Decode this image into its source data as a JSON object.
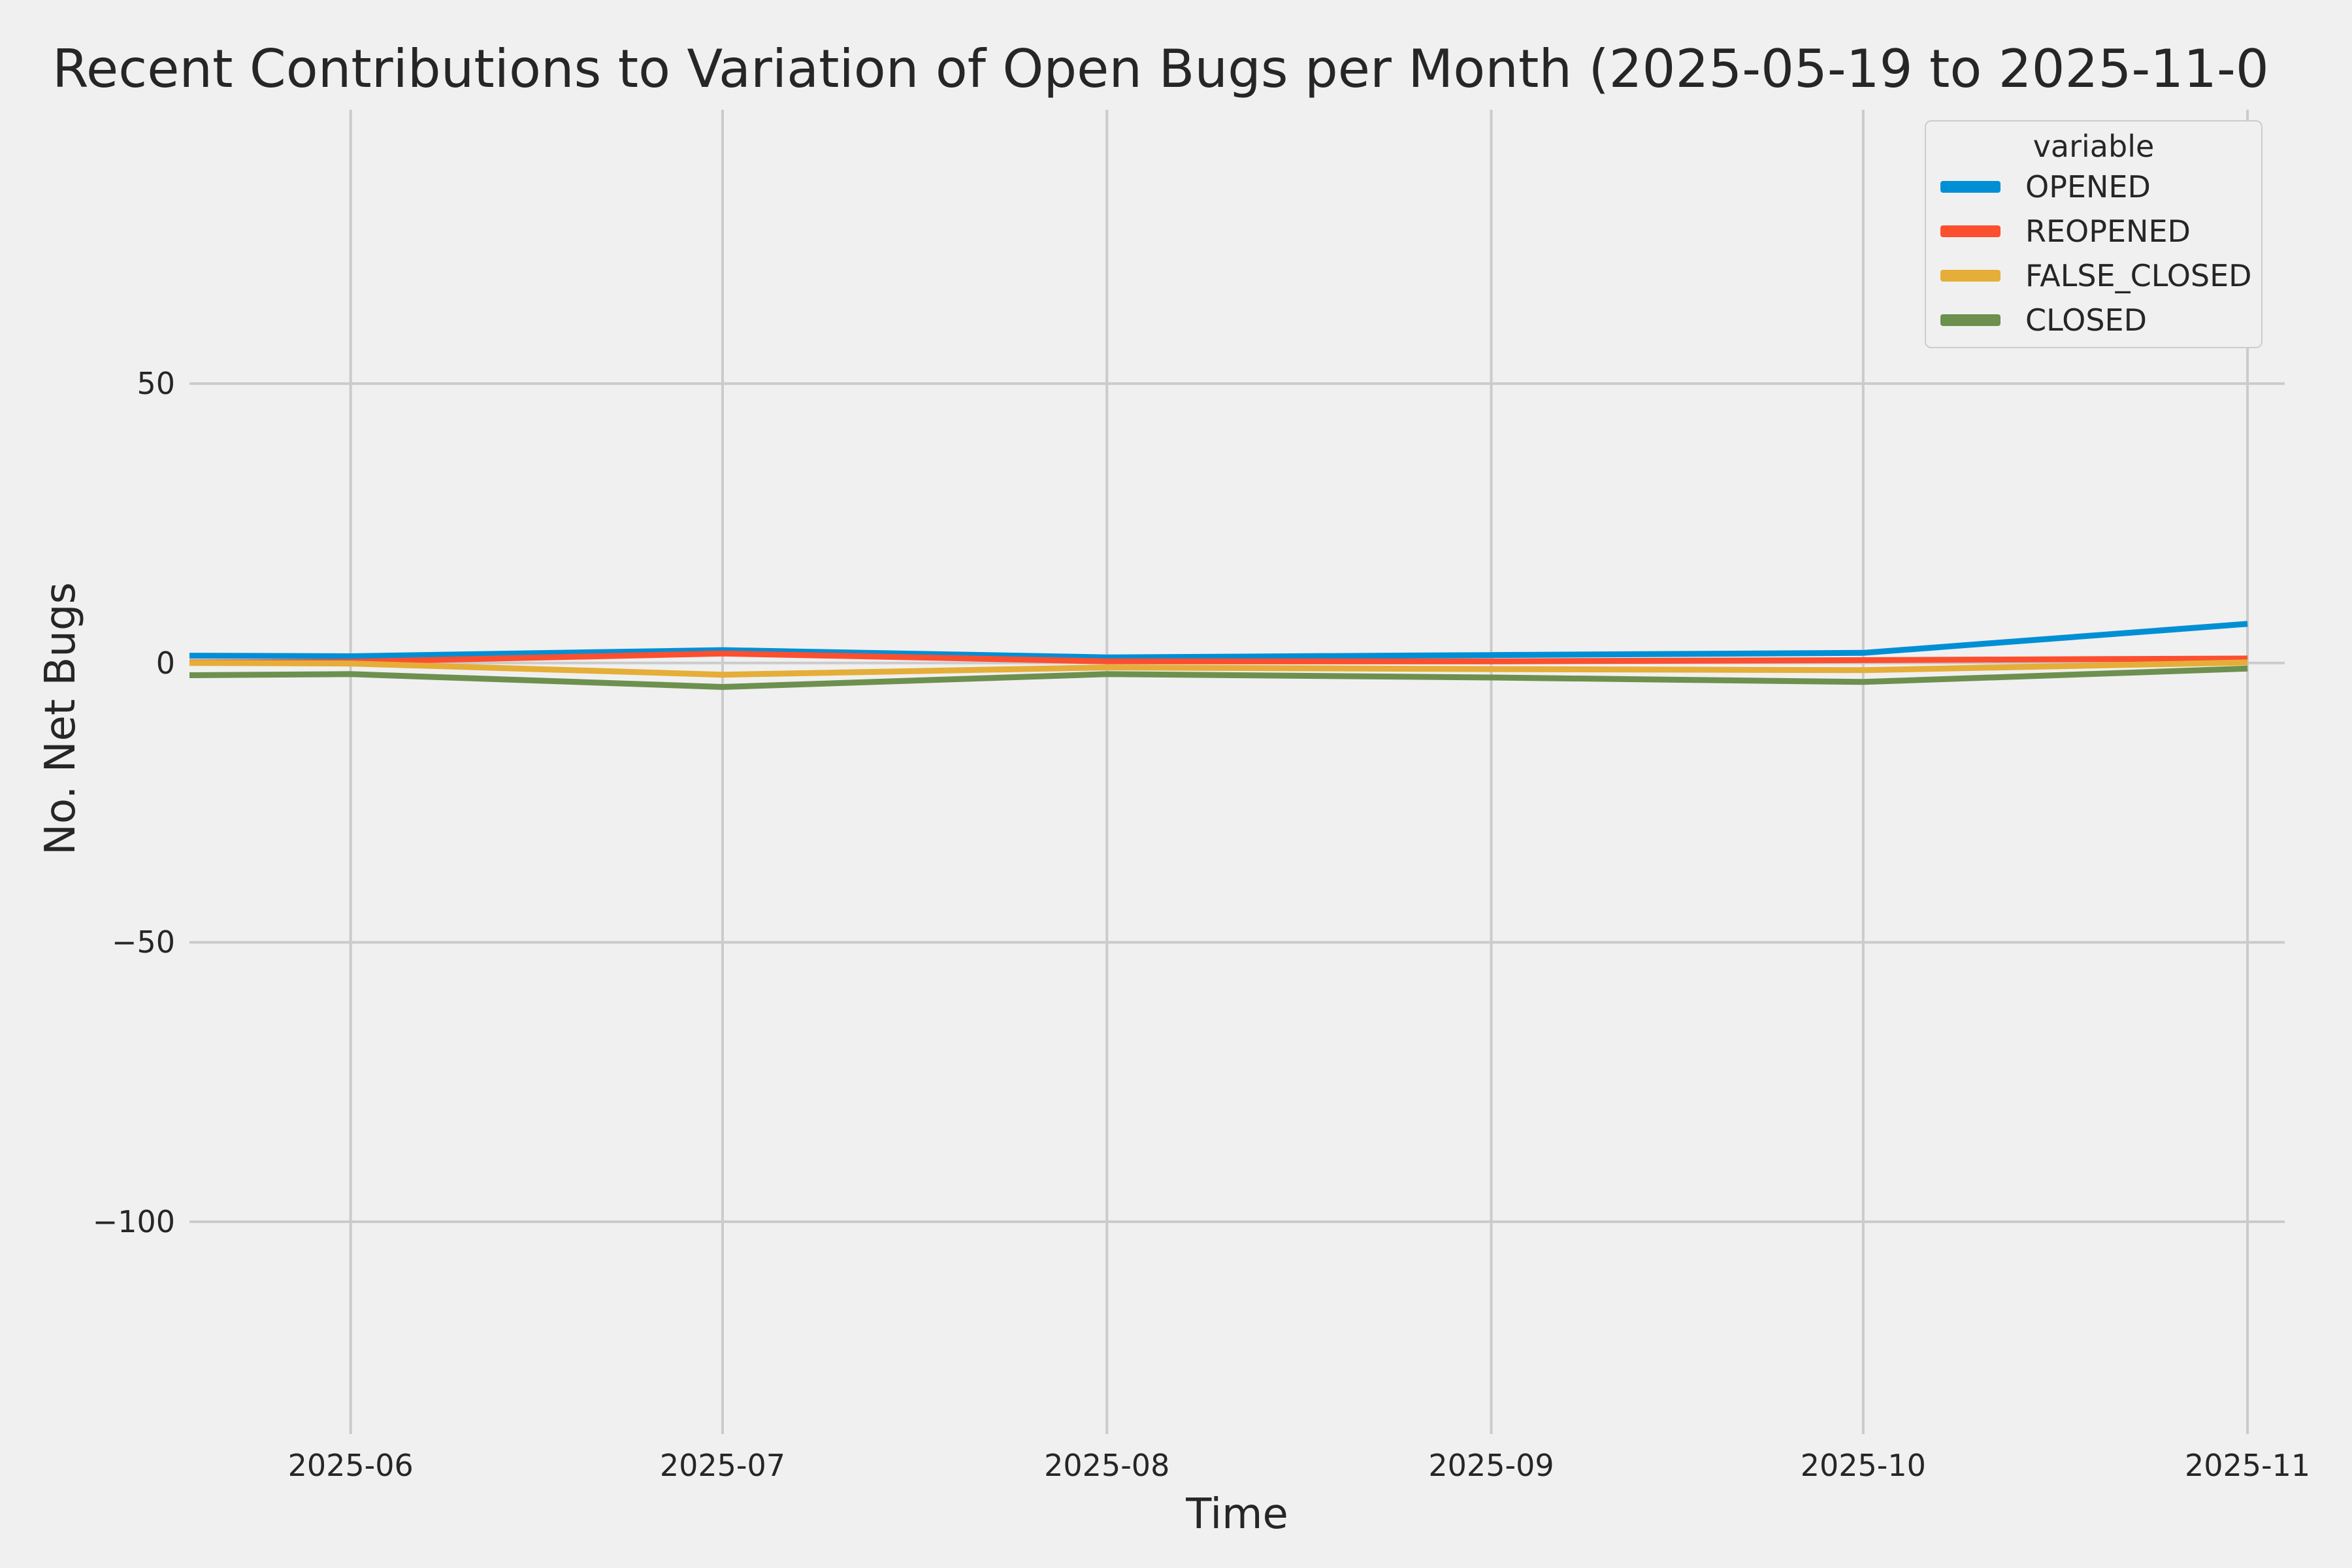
{
  "title": "Recent Contributions to Variation of Open Bugs per Month (2025-05-19 to 2025-11-0",
  "axes": {
    "x_label": "Time",
    "y_label": "No. Net Bugs"
  },
  "legend": {
    "title": "variable",
    "entries": [
      {
        "label": "OPENED",
        "color": "#008fd5"
      },
      {
        "label": "REOPENED",
        "color": "#fc4f30"
      },
      {
        "label": "FALSE_CLOSED",
        "color": "#e5ae38"
      },
      {
        "label": "CLOSED",
        "color": "#6d904f"
      }
    ]
  },
  "colors": {
    "background": "#f0f0f0",
    "gridline": "#cbcbcb",
    "text": "#262626",
    "opened": "#008fd5",
    "reopened": "#fc4f30",
    "false_closed": "#e5ae38",
    "closed": "#6d904f"
  },
  "chart_data": {
    "type": "line",
    "title": "Recent Contributions to Variation of Open Bugs per Month (2025-05-19 to 2025-11-0",
    "xlabel": "Time",
    "ylabel": "No. Net Bugs",
    "style": "fivethirtyeight",
    "grid": true,
    "legend_title": "variable",
    "legend_position": "upper right",
    "x": [
      "2025-05-19",
      "2025-06-01",
      "2025-07-01",
      "2025-08-01",
      "2025-09-01",
      "2025-10-01",
      "2025-11-01"
    ],
    "series": [
      {
        "name": "OPENED",
        "color": "#008fd5",
        "values": [
          1.3,
          1.2,
          2.3,
          1.0,
          1.4,
          1.8,
          7.0
        ]
      },
      {
        "name": "REOPENED",
        "color": "#fc4f30",
        "values": [
          0.1,
          0.2,
          1.7,
          0.3,
          0.3,
          0.5,
          0.8
        ]
      },
      {
        "name": "FALSE_CLOSED",
        "color": "#e5ae38",
        "values": [
          0.0,
          -0.1,
          -2.1,
          -0.8,
          -1.1,
          -1.3,
          0.1
        ]
      },
      {
        "name": "CLOSED",
        "color": "#6d904f",
        "values": [
          -2.2,
          -2.0,
          -4.3,
          -2.0,
          -2.6,
          -3.4,
          -1.0
        ]
      }
    ],
    "xlim": [
      "2025-05-19",
      "2025-11-04"
    ],
    "ylim": [
      -138,
      99
    ],
    "y_ticks": [
      {
        "value": 50,
        "label": "50"
      },
      {
        "value": 0,
        "label": "0"
      },
      {
        "value": -50,
        "label": "−50"
      },
      {
        "value": -100,
        "label": "−100"
      }
    ],
    "x_ticks": [
      {
        "date": "2025-06-01",
        "label": "2025-06"
      },
      {
        "date": "2025-07-01",
        "label": "2025-07"
      },
      {
        "date": "2025-08-01",
        "label": "2025-08"
      },
      {
        "date": "2025-09-01",
        "label": "2025-09"
      },
      {
        "date": "2025-10-01",
        "label": "2025-10"
      },
      {
        "date": "2025-11-01",
        "label": "2025-11"
      }
    ]
  }
}
